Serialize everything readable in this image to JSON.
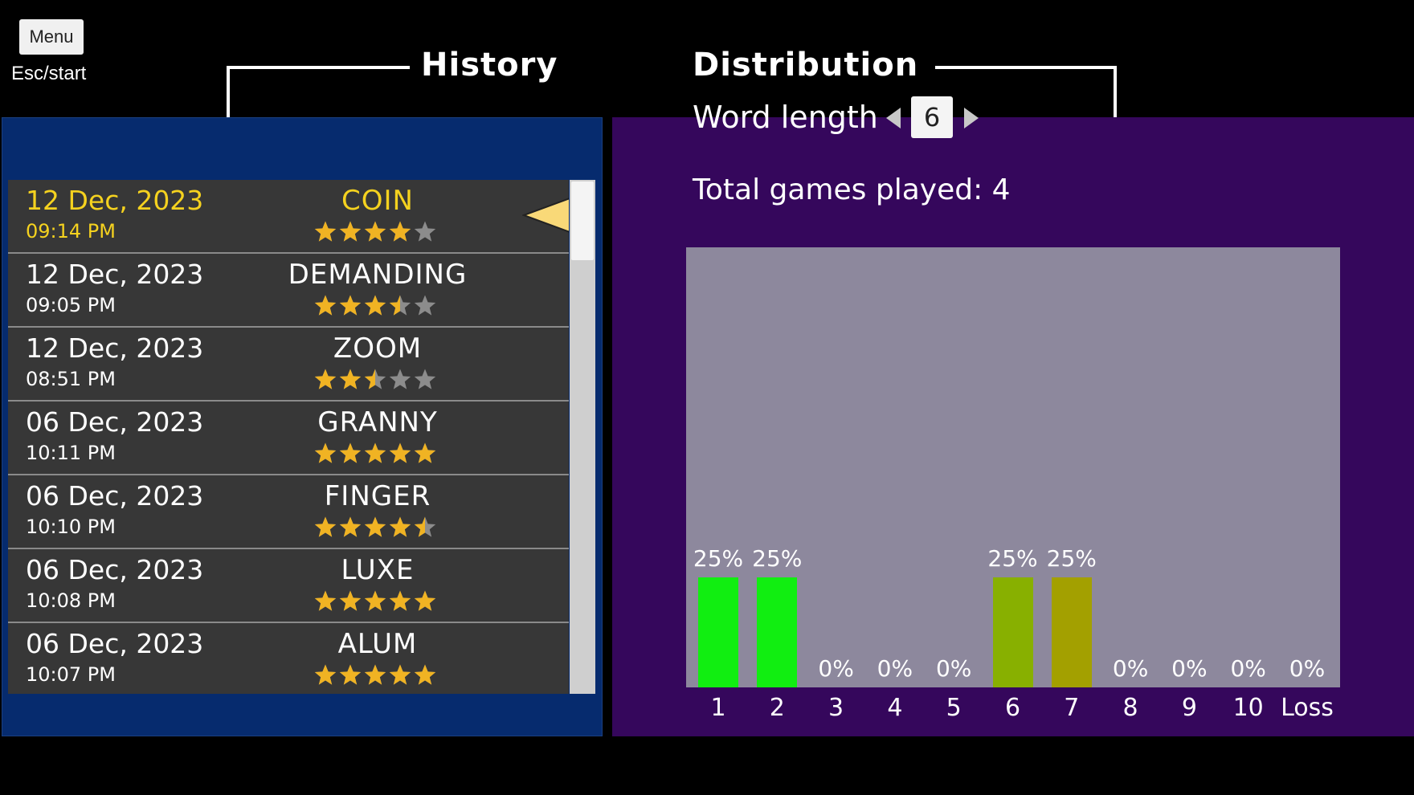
{
  "menu": {
    "label": "Menu",
    "hint": "Esc/start"
  },
  "history": {
    "title": "History",
    "entries": [
      {
        "date": "12 Dec, 2023",
        "time": "09:14 PM",
        "word": "COIN",
        "rating": 4,
        "selected": true
      },
      {
        "date": "12 Dec, 2023",
        "time": "09:05 PM",
        "word": "DEMANDING",
        "rating": 3.5,
        "selected": false
      },
      {
        "date": "12 Dec, 2023",
        "time": "08:51 PM",
        "word": "ZOOM",
        "rating": 2.5,
        "selected": false
      },
      {
        "date": "06 Dec, 2023",
        "time": "10:11 PM",
        "word": "GRANNY",
        "rating": 5,
        "selected": false
      },
      {
        "date": "06 Dec, 2023",
        "time": "10:10 PM",
        "word": "FINGER",
        "rating": 4.5,
        "selected": false
      },
      {
        "date": "06 Dec, 2023",
        "time": "10:08 PM",
        "word": "LUXE",
        "rating": 5,
        "selected": false
      },
      {
        "date": "06 Dec, 2023",
        "time": "10:07 PM",
        "word": "ALUM",
        "rating": 5,
        "selected": false
      }
    ]
  },
  "distribution": {
    "title": "Distribution",
    "word_length_label": "Word length",
    "word_length_value": "6",
    "total_games": "Total games played: 4"
  },
  "colors": {
    "star_filled": "#f0b323",
    "star_empty": "#8c8c8c",
    "selected_text": "#f5d21f",
    "pointer": "#f9d978"
  },
  "chart_data": {
    "type": "bar",
    "categories": [
      "1",
      "2",
      "3",
      "4",
      "5",
      "6",
      "7",
      "8",
      "9",
      "10",
      "Loss"
    ],
    "values": [
      25,
      25,
      0,
      0,
      0,
      25,
      25,
      0,
      0,
      0,
      0
    ],
    "labels": [
      "25%",
      "25%",
      "0%",
      "0%",
      "0%",
      "25%",
      "25%",
      "0%",
      "0%",
      "0%",
      "0%"
    ],
    "bar_colors": [
      "#11ee11",
      "#11ee11",
      "#11ee11",
      "#11ee11",
      "#11ee11",
      "#88b000",
      "#a3a000",
      "#a3a000",
      "#a3a000",
      "#a3a000",
      "#a3a000"
    ],
    "ylim": [
      0,
      100
    ],
    "title": "",
    "xlabel": "",
    "ylabel": ""
  }
}
